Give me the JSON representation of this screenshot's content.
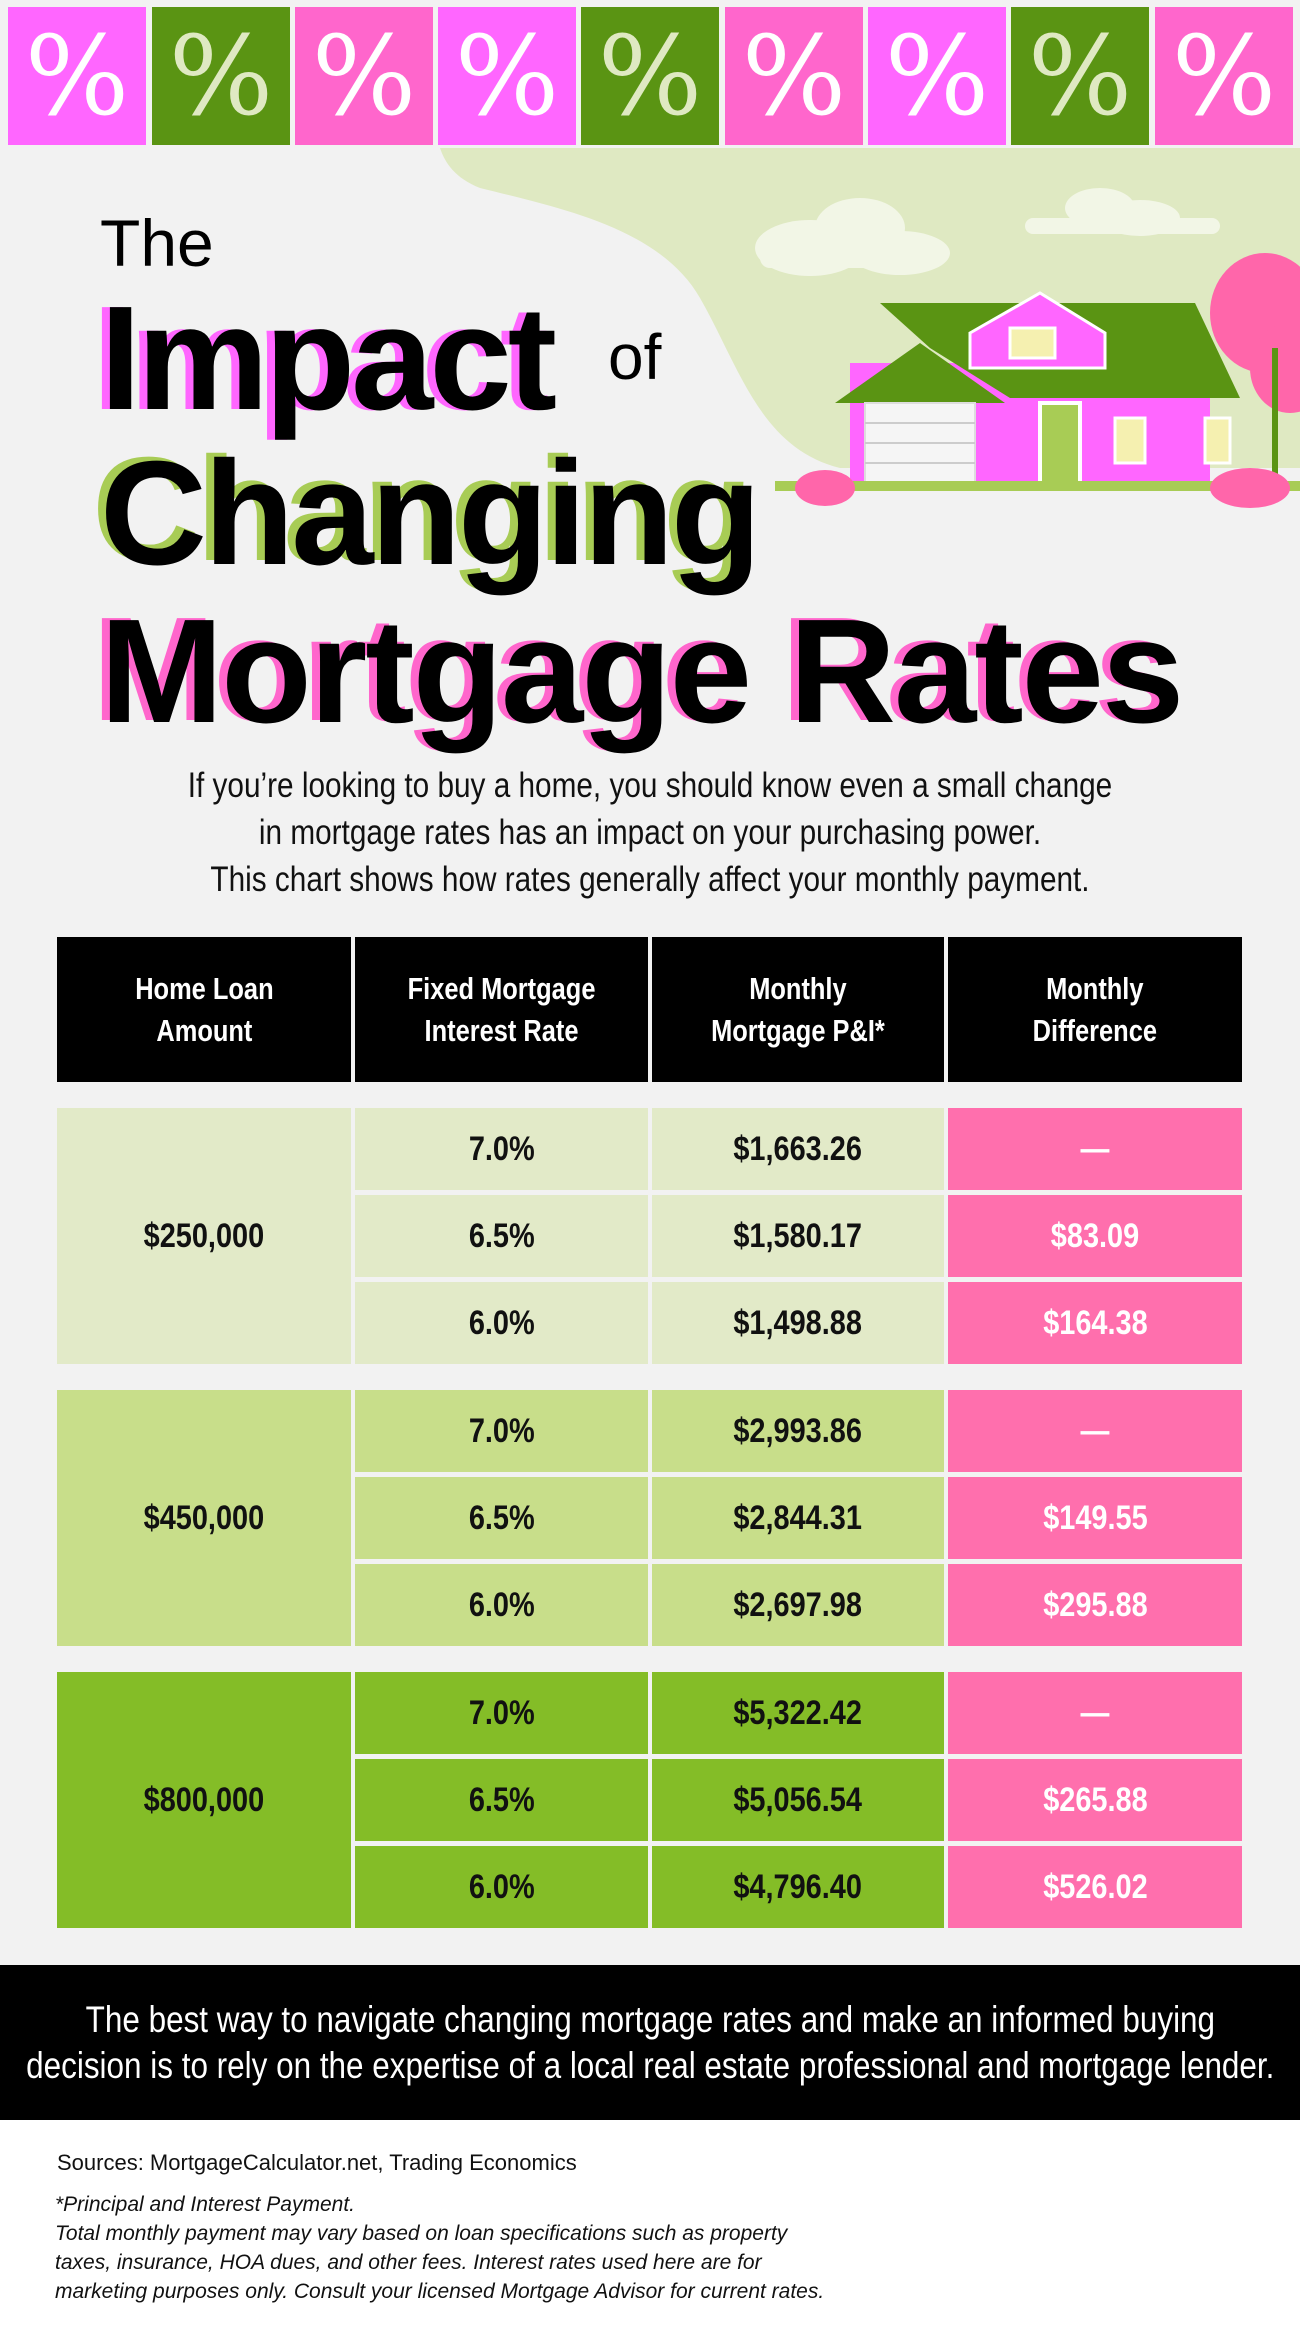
{
  "banner_tiles": [
    {
      "glyph": "%",
      "bg": "#ff66ff",
      "fg": "#ffffff"
    },
    {
      "glyph": "%",
      "bg": "#5a9413",
      "fg": "#dfe9c2"
    },
    {
      "glyph": "%",
      "bg": "#ff66cc",
      "fg": "#ffffff"
    },
    {
      "glyph": "%",
      "bg": "#ff66ff",
      "fg": "#ffffff"
    },
    {
      "glyph": "%",
      "bg": "#5a9413",
      "fg": "#dfe9c2"
    },
    {
      "glyph": "%",
      "bg": "#ff66cc",
      "fg": "#ffffff"
    },
    {
      "glyph": "%",
      "bg": "#ff66ff",
      "fg": "#ffffff"
    },
    {
      "glyph": "%",
      "bg": "#5a9413",
      "fg": "#dfe9c2"
    },
    {
      "glyph": "%",
      "bg": "#ff66cc",
      "fg": "#ffffff"
    }
  ],
  "title": {
    "the": "The",
    "impact": "Impact",
    "of": "of",
    "changing": "Changing",
    "mortgage_rates": "Mortgage Rates"
  },
  "intro": [
    "If you’re looking to buy a home, you should know even a small change",
    "in mortgage rates has an impact on your purchasing power.",
    "This chart shows how rates generally affect your monthly payment."
  ],
  "table": {
    "headers": [
      [
        "Home Loan",
        "Amount"
      ],
      [
        "Fixed Mortgage",
        "Interest Rate"
      ],
      [
        "Monthly",
        "Mortgage P&I*"
      ],
      [
        "Monthly",
        "Difference"
      ]
    ],
    "groups": [
      {
        "amount": "$250,000",
        "color": "#e2eac8",
        "rows": [
          [
            "7.0%",
            "$1,663.26",
            "—"
          ],
          [
            "6.5%",
            "$1,580.17",
            "$83.09"
          ],
          [
            "6.0%",
            "$1,498.88",
            "$164.38"
          ]
        ]
      },
      {
        "amount": "$450,000",
        "color": "#c8de8a",
        "rows": [
          [
            "7.0%",
            "$2,993.86",
            "—"
          ],
          [
            "6.5%",
            "$2,844.31",
            "$149.55"
          ],
          [
            "6.0%",
            "$2,697.98",
            "$295.88"
          ]
        ]
      },
      {
        "amount": "$800,000",
        "color": "#84bd27",
        "rows": [
          [
            "7.0%",
            "$5,322.42",
            "—"
          ],
          [
            "6.5%",
            "$5,056.54",
            "$265.88"
          ],
          [
            "6.0%",
            "$4,796.40",
            "$526.02"
          ]
        ]
      }
    ]
  },
  "cta": [
    "The best way to navigate changing mortgage rates and make an informed buying",
    "decision is to rely on the expertise of a local real estate professional and mortgage lender."
  ],
  "sources": "Sources: MortgageCalculator.net, Trading Economics",
  "notes": [
    "*Principal and Interest Payment.",
    "Total monthly payment may vary based on loan specifications such as property",
    "taxes, insurance, HOA dues, and other fees. Interest rates used here are for",
    "marketing purposes only. Consult your licensed Mortgage Advisor for current rates."
  ]
}
